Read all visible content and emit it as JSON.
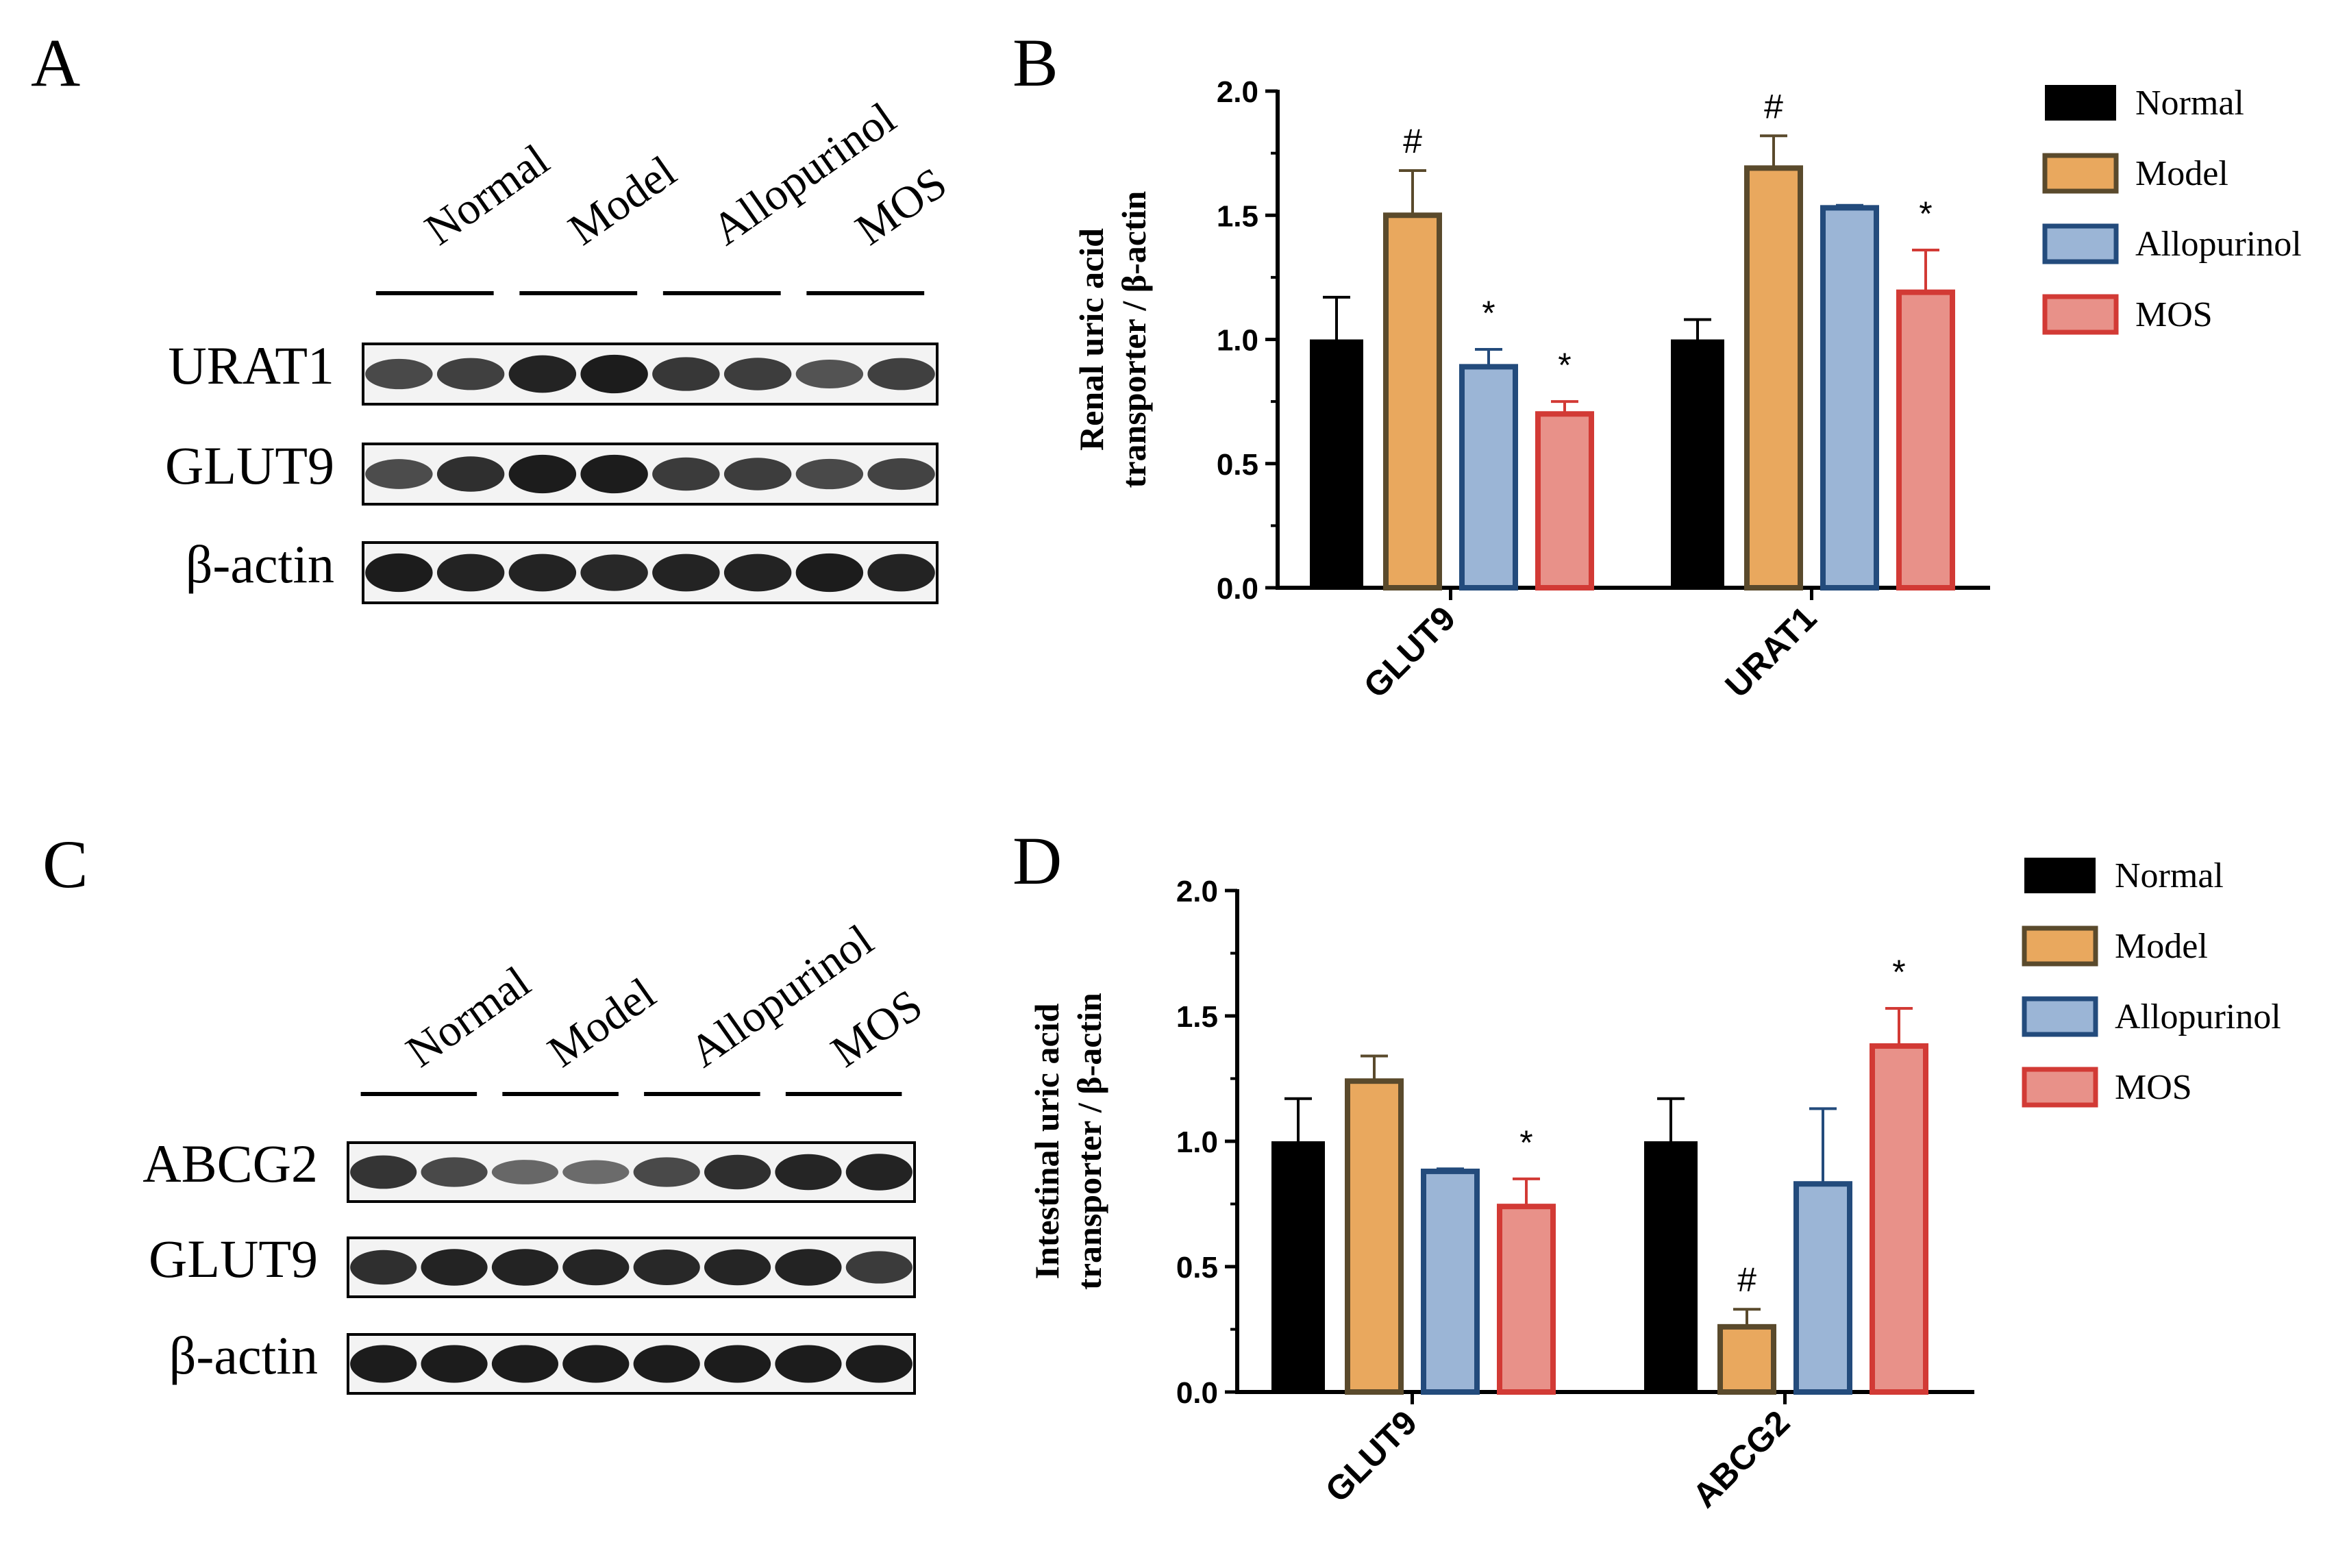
{
  "panels": {
    "A": {
      "letter": "A",
      "groups": [
        "Normal",
        "Model",
        "Allopurinol",
        "MOS"
      ],
      "rows": [
        {
          "label": "URAT1",
          "bands": [
            0.62,
            0.7,
            0.95,
            1.0,
            0.78,
            0.72,
            0.55,
            0.7
          ]
        },
        {
          "label": "GLUT9",
          "bands": [
            0.6,
            0.85,
            1.0,
            1.0,
            0.75,
            0.72,
            0.62,
            0.68
          ]
        },
        {
          "label": "β-actin",
          "bands": [
            1.0,
            0.95,
            0.95,
            0.9,
            0.95,
            0.95,
            1.0,
            0.95
          ]
        }
      ]
    },
    "C": {
      "letter": "C",
      "groups": [
        "Normal",
        "Model",
        "Allopurinol",
        "MOS"
      ],
      "rows": [
        {
          "label": "ABCG2",
          "bands": [
            0.8,
            0.62,
            0.38,
            0.35,
            0.62,
            0.85,
            0.92,
            0.95
          ]
        },
        {
          "label": "GLUT9",
          "bands": [
            0.85,
            0.95,
            0.95,
            0.92,
            0.9,
            0.92,
            0.95,
            0.75
          ]
        },
        {
          "label": "β-actin",
          "bands": [
            1.0,
            1.0,
            1.0,
            1.0,
            1.0,
            1.0,
            1.0,
            1.0
          ]
        }
      ]
    }
  },
  "chart_data": [
    {
      "panel": "B",
      "type": "bar",
      "title": "",
      "ylabel_lines": [
        "Renal uric acid",
        "transporter / β-actin"
      ],
      "ylim": [
        0,
        2.0
      ],
      "yticks": [
        "0.0",
        "0.5",
        "1.0",
        "1.5",
        "2.0"
      ],
      "categories": [
        "GLUT9",
        "URAT1"
      ],
      "series": [
        {
          "name": "Normal",
          "values": [
            1.0,
            1.0
          ],
          "errors": [
            0.17,
            0.08
          ],
          "marks": [
            "",
            ""
          ]
        },
        {
          "name": "Model",
          "values": [
            1.5,
            1.69
          ],
          "errors": [
            0.18,
            0.13
          ],
          "marks": [
            "#",
            "#"
          ]
        },
        {
          "name": "Allopurinol",
          "values": [
            0.89,
            1.53
          ],
          "errors": [
            0.07,
            0.01
          ],
          "marks": [
            "*",
            ""
          ]
        },
        {
          "name": "MOS",
          "values": [
            0.7,
            1.19
          ],
          "errors": [
            0.05,
            0.17
          ],
          "marks": [
            "*",
            "*"
          ]
        }
      ]
    },
    {
      "panel": "D",
      "type": "bar",
      "title": "",
      "ylabel_lines": [
        "Intestinal uric acid",
        "transporter / β-actin"
      ],
      "ylim": [
        0,
        2.0
      ],
      "yticks": [
        "0.0",
        "0.5",
        "1.0",
        "1.5",
        "2.0"
      ],
      "categories": [
        "GLUT9",
        "ABCG2"
      ],
      "series": [
        {
          "name": "Normal",
          "values": [
            1.0,
            1.0
          ],
          "errors": [
            0.17,
            0.17
          ],
          "marks": [
            "",
            ""
          ]
        },
        {
          "name": "Model",
          "values": [
            1.24,
            0.26
          ],
          "errors": [
            0.1,
            0.07
          ],
          "marks": [
            "",
            "#"
          ]
        },
        {
          "name": "Allopurinol",
          "values": [
            0.88,
            0.83
          ],
          "errors": [
            0.01,
            0.3
          ],
          "marks": [
            "",
            ""
          ]
        },
        {
          "name": "MOS",
          "values": [
            0.74,
            1.38
          ],
          "errors": [
            0.11,
            0.15
          ],
          "marks": [
            "*",
            "*"
          ]
        }
      ]
    }
  ],
  "legend": {
    "items": [
      "Normal",
      "Model",
      "Allopurinol",
      "MOS"
    ],
    "fills": [
      "#000000",
      "#E9A85E",
      "#9BB5D6",
      "#E89189"
    ],
    "strokes": [
      "#000000",
      "#5A4A2C",
      "#234B7C",
      "#D23A35"
    ],
    "error_colors": [
      "#000000",
      "#5A4A2C",
      "#234B7C",
      "#D23A35"
    ]
  }
}
